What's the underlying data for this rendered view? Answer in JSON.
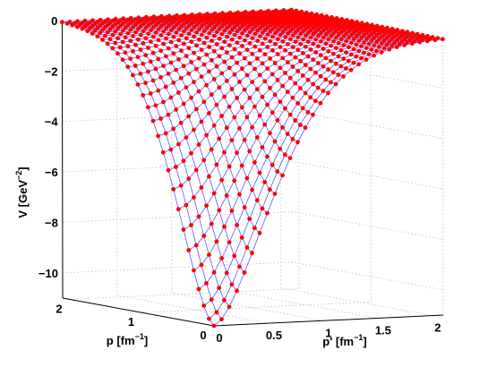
{
  "chart_data": {
    "type": "surface",
    "title": "",
    "xlabel": "p' [fm",
    "xlabel_sup": "−1",
    "xlabel_close": "]",
    "ylabel": "p [fm",
    "ylabel_sup": "−1",
    "ylabel_close": "]",
    "zlabel": "V [GeV",
    "zlabel_sup": "−2",
    "zlabel_close": "]",
    "x_ticks": [
      "0",
      "0.5",
      "1",
      "1.5",
      "2"
    ],
    "y_ticks": [
      "0",
      "1",
      "2"
    ],
    "z_ticks": [
      "0",
      "−2",
      "−4",
      "−6",
      "−8",
      "−10"
    ],
    "xlim": [
      0,
      2.1
    ],
    "ylim": [
      0,
      2.1
    ],
    "zlim": [
      -11,
      0
    ],
    "grid": true,
    "box": true,
    "mesh_points_per_side": 31,
    "surface_min": -11,
    "surface_max": 0,
    "colors": {
      "mesh_line": "#3030ff",
      "mesh_point": "#ff0000",
      "grid": "#bfbfbf",
      "axis": "#000000"
    }
  }
}
